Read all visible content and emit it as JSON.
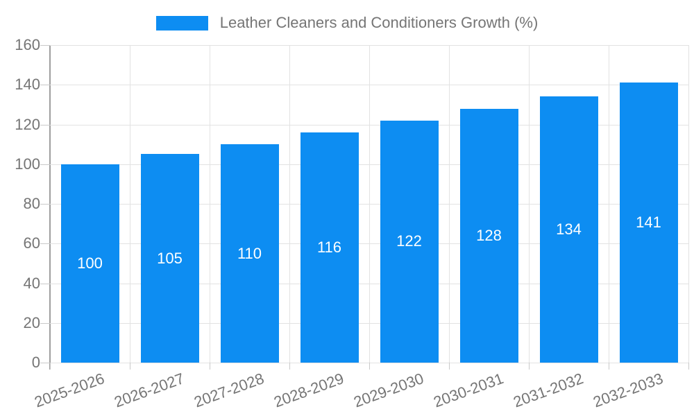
{
  "chart_data": {
    "type": "bar",
    "title": "Leather Cleaners and Conditioners Growth (%)",
    "categories": [
      "2025-2026",
      "2026-2027",
      "2027-2028",
      "2028-2029",
      "2029-2030",
      "2030-2031",
      "2031-2032",
      "2032-2033"
    ],
    "values": [
      100,
      105,
      110,
      116,
      122,
      128,
      134,
      141
    ],
    "xlabel": "",
    "ylabel": "",
    "ylim": [
      0,
      160
    ],
    "yticks": [
      0,
      20,
      40,
      60,
      80,
      100,
      120,
      140,
      160
    ],
    "grid": true,
    "legend_position": "top-center",
    "value_label_position": "inside-center",
    "x_label_rotation_deg": -20,
    "colors": {
      "bar": "#0d8df2",
      "value_label": "#ffffff",
      "axis": "#9e9e9e",
      "grid": "#e2e2e2",
      "tick": "#c9c9c9",
      "text": "#757575",
      "background": "#ffffff"
    }
  }
}
